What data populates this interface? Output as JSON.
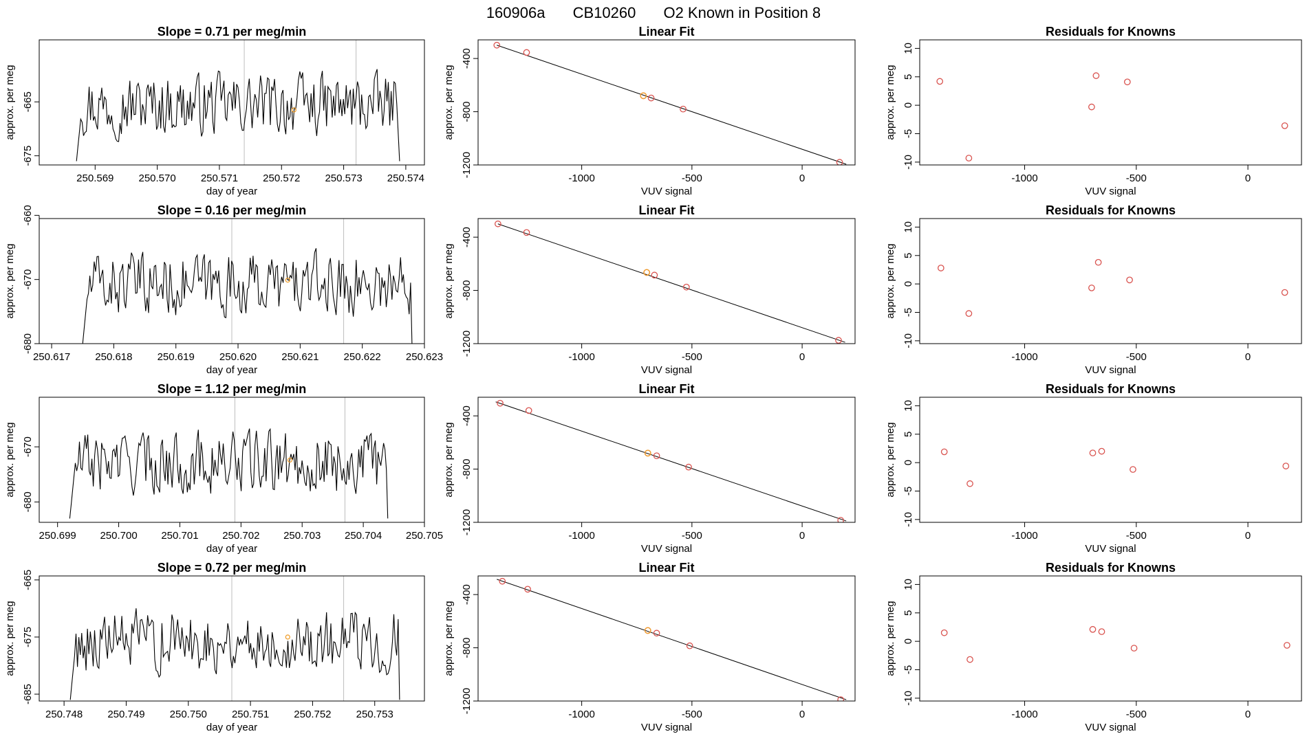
{
  "figure": {
    "title_parts": [
      "160906a",
      "CB10260",
      "O2 Known in Position  8"
    ]
  },
  "colors": {
    "line": "#000000",
    "axis": "#000000",
    "point": "#d9534f",
    "highlight": "#f0a030",
    "vline": "#bdbdbd"
  },
  "chart_data": [
    {
      "type": "line",
      "panel": "time-series",
      "row": 1,
      "title": "Slope =  0.71  per meg/min",
      "xlabel": "day of year",
      "ylabel": "approx. per meg",
      "xlim": [
        250.5681,
        250.5743
      ],
      "ylim": [
        -676.7,
        -653.5
      ],
      "xticks": [
        250.569,
        250.57,
        250.571,
        250.572,
        250.573,
        250.574
      ],
      "xtick_labels": [
        "250.569",
        "250.570",
        "250.571",
        "250.572",
        "250.573",
        "250.574"
      ],
      "yticks": [
        -665,
        -675
      ],
      "ytick_labels": [
        "-665",
        "-675"
      ],
      "xstart": 250.5687,
      "xend": 250.5739,
      "ystart": -676,
      "yend": -676,
      "vlines": [
        250.5714,
        250.5732
      ],
      "highlight_point": {
        "x": 250.5722,
        "y": -666.5
      },
      "grid": false,
      "legend": "none"
    },
    {
      "type": "line",
      "panel": "time-series",
      "row": 2,
      "title": "Slope =  0.16  per meg/min",
      "xlabel": "day of year",
      "ylabel": "approx. per meg",
      "xlim": [
        250.6168,
        250.623
      ],
      "ylim": [
        -680.0,
        -660.5
      ],
      "xticks": [
        250.617,
        250.618,
        250.619,
        250.62,
        250.621,
        250.622,
        250.623
      ],
      "xtick_labels": [
        "250.617",
        "250.618",
        "250.619",
        "250.620",
        "250.621",
        "250.622",
        "250.623"
      ],
      "yticks": [
        -660,
        -670,
        -680
      ],
      "ytick_labels": [
        "-660",
        "-670",
        "-680"
      ],
      "xstart": 250.6175,
      "xend": 250.6228,
      "ystart": -680,
      "yend": -680,
      "vlines": [
        250.6199,
        250.6217
      ],
      "highlight_point": {
        "x": 250.6208,
        "y": -670.1
      },
      "grid": false,
      "legend": "none"
    },
    {
      "type": "line",
      "panel": "time-series",
      "row": 3,
      "title": "Slope =  1.12  per meg/min",
      "xlabel": "day of year",
      "ylabel": "approx. per meg",
      "xlim": [
        250.6987,
        250.705
      ],
      "ylim": [
        -683.7,
        -661.0
      ],
      "xticks": [
        250.699,
        250.7,
        250.701,
        250.702,
        250.703,
        250.704,
        250.705
      ],
      "xtick_labels": [
        "250.699",
        "250.700",
        "250.701",
        "250.702",
        "250.703",
        "250.704",
        "250.705"
      ],
      "yticks": [
        -670,
        -680
      ],
      "ytick_labels": [
        "-670",
        "-680"
      ],
      "xstart": 250.6992,
      "xend": 250.7044,
      "ystart": -683,
      "yend": -683,
      "vlines": [
        250.7019,
        250.7037
      ],
      "highlight_point": {
        "x": 250.7028,
        "y": -672.4
      },
      "grid": false,
      "legend": "none"
    },
    {
      "type": "line",
      "panel": "time-series",
      "row": 4,
      "title": "Slope =  0.72  per meg/min",
      "xlabel": "day of year",
      "ylabel": "approx. per meg",
      "xlim": [
        250.7476,
        250.7538
      ],
      "ylim": [
        -686.2,
        -664.3
      ],
      "xticks": [
        250.748,
        250.749,
        250.75,
        250.751,
        250.752,
        250.753
      ],
      "xtick_labels": [
        "250.748",
        "250.749",
        "250.750",
        "250.751",
        "250.752",
        "250.753"
      ],
      "yticks": [
        -665,
        -675,
        -685
      ],
      "ytick_labels": [
        "-665",
        "-675",
        "-685"
      ],
      "xstart": 250.7481,
      "xend": 250.7534,
      "ystart": -686,
      "yend": -686,
      "vlines": [
        250.7507,
        250.7525
      ],
      "highlight_point": {
        "x": 250.7516,
        "y": -675.0
      },
      "grid": false,
      "legend": "none"
    },
    {
      "type": "scatter",
      "panel": "linear-fit",
      "row": 1,
      "title": "Linear Fit",
      "xlabel": "VUV signal",
      "ylabel": "approx. per meg",
      "xlim": [
        -1470,
        240
      ],
      "ylim": [
        -1200,
        -260
      ],
      "xticks": [
        -1000,
        -500,
        0
      ],
      "xtick_labels": [
        "-1000",
        "-500",
        "0"
      ],
      "yticks": [
        -400,
        -800,
        -1200
      ],
      "ytick_labels": [
        "-400",
        "-800",
        "-1200"
      ],
      "points": [
        [
          -1385,
          -300
        ],
        [
          -1250,
          -355
        ],
        [
          -720,
          -680
        ],
        [
          -685,
          -697
        ],
        [
          -540,
          -780
        ],
        [
          170,
          -1180
        ]
      ],
      "highlight_point": {
        "x": -720,
        "y": -680
      },
      "fit_line": [
        [
          -1385,
          -300
        ],
        [
          200,
          -1195
        ]
      ],
      "grid": false,
      "legend": "none"
    },
    {
      "type": "scatter",
      "panel": "linear-fit",
      "row": 2,
      "title": "Linear Fit",
      "xlabel": "VUV signal",
      "ylabel": "approx. per meg",
      "xlim": [
        -1470,
        240
      ],
      "ylim": [
        -1200,
        -260
      ],
      "xticks": [
        -1000,
        -500,
        0
      ],
      "xtick_labels": [
        "-1000",
        "-500",
        "0"
      ],
      "yticks": [
        -400,
        -800,
        -1200
      ],
      "ytick_labels": [
        "-400",
        "-800",
        "-1200"
      ],
      "points": [
        [
          -1380,
          -300
        ],
        [
          -1250,
          -365
        ],
        [
          -705,
          -665
        ],
        [
          -670,
          -685
        ],
        [
          -525,
          -775
        ],
        [
          165,
          -1175
        ]
      ],
      "highlight_point": {
        "x": -705,
        "y": -665
      },
      "fit_line": [
        [
          -1380,
          -300
        ],
        [
          195,
          -1190
        ]
      ],
      "grid": false,
      "legend": "none"
    },
    {
      "type": "scatter",
      "panel": "linear-fit",
      "row": 3,
      "title": "Linear Fit",
      "xlabel": "VUV signal",
      "ylabel": "approx. per meg",
      "xlim": [
        -1470,
        240
      ],
      "ylim": [
        -1200,
        -260
      ],
      "xticks": [
        -1000,
        -500,
        0
      ],
      "xtick_labels": [
        "-1000",
        "-500",
        "0"
      ],
      "yticks": [
        -400,
        -800,
        -1200
      ],
      "ytick_labels": [
        "-400",
        "-800",
        "-1200"
      ],
      "points": [
        [
          -1370,
          -305
        ],
        [
          -1240,
          -360
        ],
        [
          -700,
          -680
        ],
        [
          -660,
          -700
        ],
        [
          -515,
          -785
        ],
        [
          175,
          -1185
        ]
      ],
      "highlight_point": {
        "x": -700,
        "y": -680
      },
      "fit_line": [
        [
          -1390,
          -295
        ],
        [
          200,
          -1190
        ]
      ],
      "grid": false,
      "legend": "none"
    },
    {
      "type": "scatter",
      "panel": "linear-fit",
      "row": 4,
      "title": "Linear Fit",
      "xlabel": "VUV signal",
      "ylabel": "approx. per meg",
      "xlim": [
        -1470,
        240
      ],
      "ylim": [
        -1200,
        -260
      ],
      "xticks": [
        -1000,
        -500,
        0
      ],
      "xtick_labels": [
        "-1000",
        "-500",
        "0"
      ],
      "yticks": [
        -400,
        -800,
        -1200
      ],
      "ytick_labels": [
        "-400",
        "-800",
        "-1200"
      ],
      "points": [
        [
          -1360,
          -300
        ],
        [
          -1245,
          -360
        ],
        [
          -700,
          -670
        ],
        [
          -660,
          -690
        ],
        [
          -510,
          -785
        ],
        [
          175,
          -1190
        ]
      ],
      "highlight_point": {
        "x": -700,
        "y": -670
      },
      "fit_line": [
        [
          -1385,
          -285
        ],
        [
          200,
          -1190
        ]
      ],
      "grid": false,
      "legend": "none"
    },
    {
      "type": "scatter",
      "panel": "residuals",
      "row": 1,
      "title": "Residuals for Knowns",
      "xlabel": "VUV signal",
      "ylabel": "approx. per meg",
      "xlim": [
        -1470,
        240
      ],
      "ylim": [
        -10.5,
        11.5
      ],
      "xticks": [
        -1000,
        -500,
        0
      ],
      "xtick_labels": [
        "-1000",
        "-500",
        "0"
      ],
      "yticks": [
        10,
        5,
        0,
        -5,
        -10
      ],
      "ytick_labels": [
        "10",
        "5",
        "0",
        "-5",
        "-10"
      ],
      "points": [
        [
          -1380,
          4.2
        ],
        [
          -1250,
          -9.3
        ],
        [
          -700,
          -0.3
        ],
        [
          -680,
          5.2
        ],
        [
          -540,
          4.1
        ],
        [
          165,
          -3.6
        ]
      ],
      "grid": false,
      "legend": "none"
    },
    {
      "type": "scatter",
      "panel": "residuals",
      "row": 2,
      "title": "Residuals for Knowns",
      "xlabel": "VUV signal",
      "ylabel": "approx. per meg",
      "xlim": [
        -1470,
        240
      ],
      "ylim": [
        -10.5,
        11.5
      ],
      "xticks": [
        -1000,
        -500,
        0
      ],
      "xtick_labels": [
        "-1000",
        "-500",
        "0"
      ],
      "yticks": [
        10,
        5,
        0,
        -5,
        -10
      ],
      "ytick_labels": [
        "10",
        "5",
        "0",
        "-5",
        "-10"
      ],
      "points": [
        [
          -1375,
          2.8
        ],
        [
          -1250,
          -5.2
        ],
        [
          -700,
          -0.7
        ],
        [
          -670,
          3.8
        ],
        [
          -530,
          0.7
        ],
        [
          165,
          -1.5
        ]
      ],
      "grid": false,
      "legend": "none"
    },
    {
      "type": "scatter",
      "panel": "residuals",
      "row": 3,
      "title": "Residuals for Knowns",
      "xlabel": "VUV signal",
      "ylabel": "approx. per meg",
      "xlim": [
        -1470,
        240
      ],
      "ylim": [
        -10.5,
        11.5
      ],
      "xticks": [
        -1000,
        -500,
        0
      ],
      "xtick_labels": [
        "-1000",
        "-500",
        "0"
      ],
      "yticks": [
        10,
        5,
        0,
        -5,
        -10
      ],
      "ytick_labels": [
        "10",
        "5",
        "0",
        "-5",
        "-10"
      ],
      "points": [
        [
          -1360,
          1.9
        ],
        [
          -1245,
          -3.7
        ],
        [
          -695,
          1.7
        ],
        [
          -655,
          2.0
        ],
        [
          -515,
          -1.2
        ],
        [
          170,
          -0.6
        ]
      ],
      "grid": false,
      "legend": "none"
    },
    {
      "type": "scatter",
      "panel": "residuals",
      "row": 4,
      "title": "Residuals for Knowns",
      "xlabel": "VUV signal",
      "ylabel": "approx. per meg",
      "xlim": [
        -1470,
        240
      ],
      "ylim": [
        -10.5,
        11.5
      ],
      "xticks": [
        -1000,
        -500,
        0
      ],
      "xtick_labels": [
        "-1000",
        "-500",
        "0"
      ],
      "yticks": [
        10,
        5,
        0,
        -5,
        -10
      ],
      "ytick_labels": [
        "10",
        "5",
        "0",
        "-5",
        "-10"
      ],
      "points": [
        [
          -1360,
          1.5
        ],
        [
          -1245,
          -3.2
        ],
        [
          -695,
          2.1
        ],
        [
          -655,
          1.7
        ],
        [
          -510,
          -1.2
        ],
        [
          175,
          -0.7
        ]
      ],
      "grid": false,
      "legend": "none"
    }
  ]
}
